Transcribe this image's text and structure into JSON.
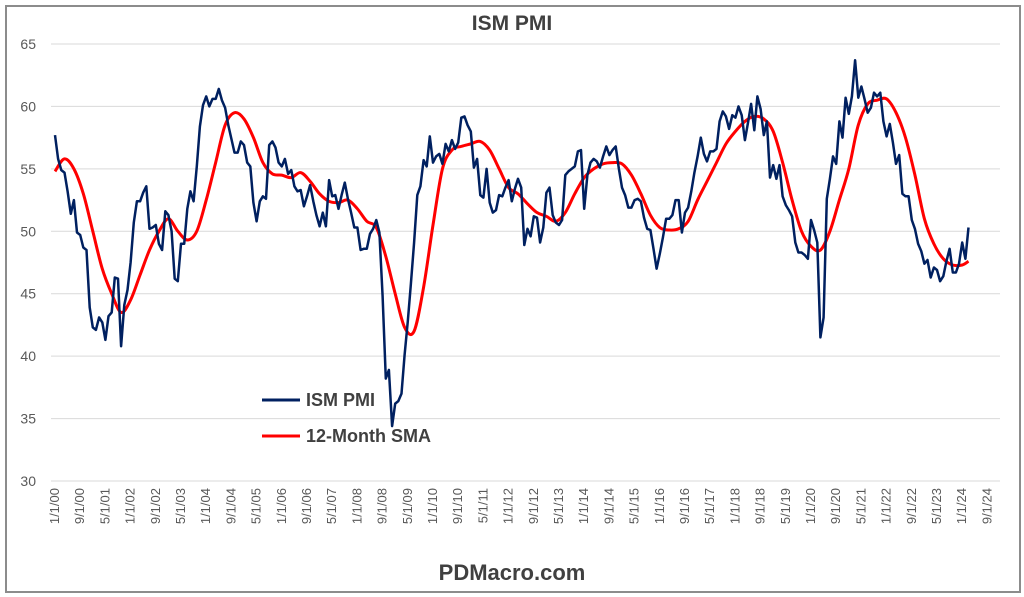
{
  "chart_data": {
    "type": "line",
    "title": "ISM PMI",
    "footer": "PDMacro.com",
    "ylim": [
      30,
      65
    ],
    "yticks": [
      30,
      35,
      40,
      45,
      50,
      55,
      60,
      65
    ],
    "xlim": [
      "2000-01",
      "2025-01"
    ],
    "x_tick_labels": [
      "1/1/00",
      "9/1/00",
      "5/1/01",
      "1/1/02",
      "9/1/02",
      "5/1/03",
      "1/1/04",
      "9/1/04",
      "5/1/05",
      "1/1/06",
      "9/1/06",
      "5/1/07",
      "1/1/08",
      "9/1/08",
      "5/1/09",
      "1/1/10",
      "9/1/10",
      "5/1/11",
      "1/1/12",
      "9/1/12",
      "5/1/13",
      "1/1/14",
      "9/1/14",
      "5/1/15",
      "1/1/16",
      "9/1/16",
      "5/1/17",
      "1/1/18",
      "9/1/18",
      "5/1/19",
      "1/1/20",
      "9/1/20",
      "5/1/21",
      "1/1/22",
      "9/1/22",
      "5/1/23",
      "1/1/24",
      "9/1/24"
    ],
    "grid": true,
    "legend_position": "inside-bottom-left",
    "series": [
      {
        "name": "ISM PMI",
        "color": "#002060",
        "start": "2000-01",
        "frequency": "monthly",
        "values": [
          57.7,
          55.8,
          54.9,
          54.7,
          53.2,
          51.4,
          52.5,
          49.9,
          49.7,
          48.7,
          48.5,
          43.9,
          42.3,
          42.1,
          43.1,
          42.7,
          41.3,
          43.2,
          43.5,
          46.3,
          46.2,
          40.8,
          44.1,
          45.3,
          47.5,
          50.7,
          52.4,
          52.4,
          53.1,
          53.6,
          50.2,
          50.3,
          50.5,
          49.0,
          48.5,
          51.6,
          51.3,
          50.0,
          46.2,
          46.0,
          49.0,
          49.0,
          51.8,
          53.2,
          52.4,
          55.2,
          58.4,
          60.1,
          60.8,
          60.0,
          60.6,
          60.6,
          61.4,
          60.5,
          59.9,
          58.5,
          57.4,
          56.3,
          56.3,
          57.2,
          56.9,
          55.5,
          55.2,
          52.3,
          50.8,
          52.4,
          52.8,
          52.6,
          56.9,
          57.2,
          56.7,
          55.5,
          55.2,
          55.8,
          54.6,
          54.9,
          53.6,
          53.2,
          53.3,
          52.0,
          52.8,
          53.7,
          52.4,
          51.3,
          50.4,
          51.5,
          50.4,
          54.1,
          52.8,
          52.9,
          51.8,
          52.9,
          53.9,
          52.6,
          51.5,
          50.3,
          50.3,
          48.5,
          48.6,
          48.6,
          49.8,
          50.2,
          50.9,
          49.9,
          44.8,
          38.2,
          38.9,
          34.4,
          36.2,
          36.4,
          37.0,
          40.1,
          42.8,
          45.8,
          49.1,
          52.9,
          53.6,
          55.7,
          55.2,
          57.6,
          55.5,
          56.0,
          56.2,
          55.4,
          57.0,
          56.4,
          57.3,
          56.6,
          57.1,
          59.1,
          59.2,
          58.5,
          58.0,
          55.1,
          55.8,
          52.9,
          52.7,
          55.0,
          52.3,
          51.5,
          51.7,
          52.9,
          52.8,
          53.5,
          54.1,
          52.4,
          53.4,
          54.2,
          53.5,
          48.9,
          50.2,
          49.6,
          51.2,
          51.1,
          49.1,
          50.3,
          53.1,
          53.5,
          51.3,
          50.7,
          50.5,
          50.9,
          54.5,
          54.8,
          55.0,
          55.2,
          56.4,
          56.5,
          51.8,
          54.5,
          55.5,
          55.8,
          55.6,
          55.1,
          56.0,
          56.8,
          56.1,
          56.5,
          56.8,
          55.0,
          53.5,
          52.9,
          51.9,
          51.9,
          52.5,
          52.6,
          52.4,
          51.1,
          50.2,
          50.1,
          48.6,
          47.0,
          48.2,
          49.5,
          51.0,
          51.0,
          51.3,
          52.5,
          52.5,
          49.9,
          51.5,
          51.9,
          53.2,
          54.7,
          56.0,
          57.5,
          56.2,
          55.6,
          56.4,
          56.4,
          56.6,
          58.8,
          59.6,
          59.2,
          58.2,
          59.3,
          59.1,
          60.0,
          59.3,
          57.3,
          58.7,
          60.2,
          58.1,
          60.8,
          59.8,
          57.7,
          58.8,
          54.3,
          55.3,
          54.2,
          55.3,
          52.8,
          52.1,
          51.7,
          51.2,
          49.1,
          48.3,
          48.3,
          48.1,
          47.8,
          50.9,
          50.1,
          49.1,
          41.5,
          43.1,
          52.6,
          54.2,
          56.0,
          55.4,
          58.8,
          57.5,
          60.7,
          59.4,
          60.8,
          63.7,
          60.7,
          61.6,
          60.6,
          59.5,
          59.9,
          61.1,
          60.8,
          61.1,
          58.8,
          57.6,
          58.6,
          57.1,
          55.4,
          56.1,
          53.0,
          52.8,
          52.8,
          50.9,
          50.2,
          49.0,
          48.4,
          47.4,
          47.7,
          46.3,
          47.1,
          46.9,
          46.0,
          46.4,
          47.6,
          48.6,
          46.7,
          46.7,
          47.4,
          49.1,
          47.8,
          50.3
        ]
      },
      {
        "name": "12-Month SMA",
        "color": "#ff0000",
        "frequency": "quarterly",
        "points": [
          [
            "2000-01",
            54.8
          ],
          [
            "2000-04",
            55.8
          ],
          [
            "2000-07",
            55.0
          ],
          [
            "2000-10",
            53.0
          ],
          [
            "2001-01",
            50.0
          ],
          [
            "2001-04",
            47.0
          ],
          [
            "2001-07",
            45.0
          ],
          [
            "2001-10",
            43.5
          ],
          [
            "2002-01",
            44.5
          ],
          [
            "2002-04",
            46.5
          ],
          [
            "2002-07",
            48.5
          ],
          [
            "2002-10",
            50.0
          ],
          [
            "2003-01",
            51.0
          ],
          [
            "2003-04",
            50.0
          ],
          [
            "2003-07",
            49.3
          ],
          [
            "2003-10",
            50.0
          ],
          [
            "2004-01",
            52.5
          ],
          [
            "2004-04",
            55.5
          ],
          [
            "2004-07",
            58.5
          ],
          [
            "2004-10",
            59.5
          ],
          [
            "2005-01",
            59.0
          ],
          [
            "2005-04",
            57.5
          ],
          [
            "2005-07",
            55.5
          ],
          [
            "2005-10",
            54.6
          ],
          [
            "2006-01",
            54.5
          ],
          [
            "2006-04",
            54.3
          ],
          [
            "2006-07",
            54.7
          ],
          [
            "2006-10",
            54.0
          ],
          [
            "2007-01",
            53.0
          ],
          [
            "2007-04",
            52.4
          ],
          [
            "2007-07",
            52.3
          ],
          [
            "2007-10",
            52.5
          ],
          [
            "2008-01",
            51.8
          ],
          [
            "2008-04",
            50.8
          ],
          [
            "2008-07",
            50.3
          ],
          [
            "2008-10",
            48.0
          ],
          [
            "2009-01",
            45.0
          ],
          [
            "2009-04",
            42.3
          ],
          [
            "2009-07",
            42.0
          ],
          [
            "2009-10",
            45.5
          ],
          [
            "2010-01",
            50.5
          ],
          [
            "2010-04",
            55.0
          ],
          [
            "2010-07",
            56.5
          ],
          [
            "2010-10",
            56.8
          ],
          [
            "2011-01",
            57.0
          ],
          [
            "2011-04",
            57.2
          ],
          [
            "2011-07",
            56.5
          ],
          [
            "2011-10",
            55.0
          ],
          [
            "2012-01",
            53.5
          ],
          [
            "2012-04",
            53.0
          ],
          [
            "2012-07",
            52.2
          ],
          [
            "2012-10",
            51.5
          ],
          [
            "2013-01",
            51.2
          ],
          [
            "2013-04",
            50.8
          ],
          [
            "2013-07",
            51.5
          ],
          [
            "2013-10",
            53.0
          ],
          [
            "2014-01",
            54.3
          ],
          [
            "2014-04",
            55.0
          ],
          [
            "2014-07",
            55.4
          ],
          [
            "2014-10",
            55.5
          ],
          [
            "2015-01",
            55.4
          ],
          [
            "2015-04",
            54.5
          ],
          [
            "2015-07",
            53.0
          ],
          [
            "2015-10",
            51.3
          ],
          [
            "2016-01",
            50.3
          ],
          [
            "2016-04",
            50.1
          ],
          [
            "2016-07",
            50.2
          ],
          [
            "2016-10",
            50.8
          ],
          [
            "2017-01",
            52.5
          ],
          [
            "2017-04",
            54.0
          ],
          [
            "2017-07",
            55.5
          ],
          [
            "2017-10",
            57.0
          ],
          [
            "2018-01",
            58.0
          ],
          [
            "2018-04",
            58.8
          ],
          [
            "2018-07",
            59.2
          ],
          [
            "2018-10",
            59.0
          ],
          [
            "2019-01",
            58.0
          ],
          [
            "2019-04",
            55.5
          ],
          [
            "2019-07",
            52.5
          ],
          [
            "2019-10",
            50.0
          ],
          [
            "2020-01",
            48.8
          ],
          [
            "2020-04",
            48.5
          ],
          [
            "2020-07",
            50.0
          ],
          [
            "2020-10",
            52.5
          ],
          [
            "2021-01",
            55.0
          ],
          [
            "2021-04",
            58.5
          ],
          [
            "2021-07",
            60.2
          ],
          [
            "2021-10",
            60.5
          ],
          [
            "2022-01",
            60.6
          ],
          [
            "2022-04",
            59.5
          ],
          [
            "2022-07",
            57.5
          ],
          [
            "2022-10",
            54.5
          ],
          [
            "2023-01",
            51.0
          ],
          [
            "2023-04",
            49.0
          ],
          [
            "2023-07",
            47.8
          ],
          [
            "2023-10",
            47.3
          ],
          [
            "2024-01",
            47.3
          ],
          [
            "2024-03",
            47.6
          ]
        ]
      }
    ]
  }
}
